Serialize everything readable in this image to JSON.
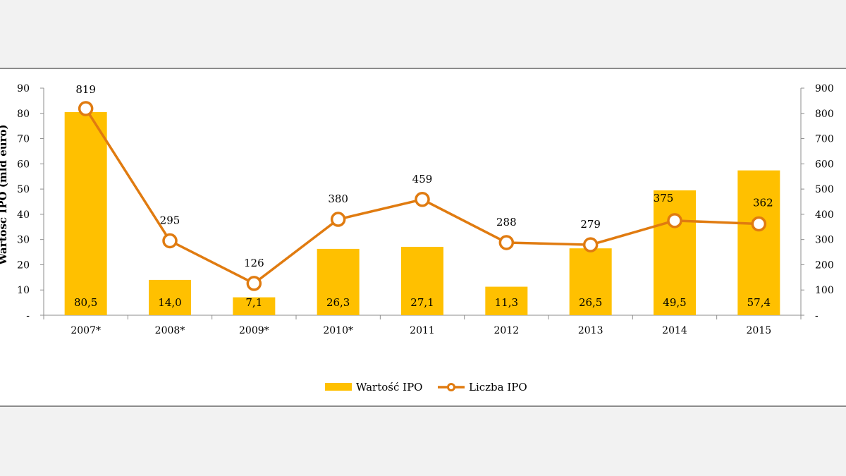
{
  "chart_data": {
    "type": "bar",
    "categories": [
      "2007*",
      "2008*",
      "2009*",
      "2010*",
      "2011",
      "2012",
      "2013",
      "2014",
      "2015"
    ],
    "series": [
      {
        "name": "Wartość IPO",
        "kind": "bar",
        "axis": "left",
        "values": [
          80.5,
          14.0,
          7.1,
          26.3,
          27.1,
          11.3,
          26.5,
          49.5,
          57.4
        ],
        "labels": [
          "80,5",
          "14,0",
          "7,1",
          "26,3",
          "27,1",
          "11,3",
          "26,5",
          "49,5",
          "57,4"
        ],
        "color": "#ffc000"
      },
      {
        "name": "Liczba IPO",
        "kind": "line",
        "axis": "right",
        "values": [
          819,
          295,
          126,
          380,
          459,
          288,
          279,
          375,
          362
        ],
        "labels": [
          "819",
          "295",
          "126",
          "380",
          "459",
          "288",
          "279",
          "375",
          "362"
        ],
        "color": "#e07b10"
      }
    ],
    "ylabel": "Wartość IPO (mld euro)",
    "ylim": [
      0,
      90
    ],
    "y2lim": [
      0,
      900
    ],
    "yticks": [
      "-",
      "10",
      "20",
      "30",
      "40",
      "50",
      "60",
      "70",
      "80",
      "90"
    ],
    "y2ticks": [
      "-",
      "100",
      "200",
      "300",
      "400",
      "500",
      "600",
      "700",
      "800",
      "900"
    ],
    "grid": false,
    "legend_position": "bottom"
  }
}
